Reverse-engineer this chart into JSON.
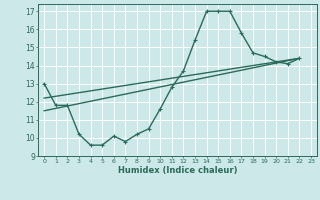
{
  "xlabel": "Humidex (Indice chaleur)",
  "xlim": [
    -0.5,
    23.5
  ],
  "ylim": [
    9,
    17.4
  ],
  "yticks": [
    9,
    10,
    11,
    12,
    13,
    14,
    15,
    16,
    17
  ],
  "xticks": [
    0,
    1,
    2,
    3,
    4,
    5,
    6,
    7,
    8,
    9,
    10,
    11,
    12,
    13,
    14,
    15,
    16,
    17,
    18,
    19,
    20,
    21,
    22,
    23
  ],
  "xtick_labels": [
    "0",
    "1",
    "2",
    "3",
    "4",
    "5",
    "6",
    "7",
    "8",
    "9",
    "10",
    "11",
    "12",
    "13",
    "14",
    "15",
    "16",
    "17",
    "18",
    "19",
    "20",
    "21",
    "22",
    "23"
  ],
  "background_color": "#cce8e8",
  "grid_color": "#ffffff",
  "line_color": "#2a6b5a",
  "line1_x": [
    0,
    1,
    2,
    3,
    4,
    5,
    6,
    7,
    8,
    9,
    10,
    11,
    12,
    13,
    14,
    15,
    16,
    17,
    18,
    19,
    20,
    21,
    22
  ],
  "line1_y": [
    13.0,
    11.8,
    11.8,
    10.2,
    9.6,
    9.6,
    10.1,
    9.8,
    10.2,
    10.5,
    11.6,
    12.8,
    13.7,
    15.4,
    17.0,
    17.0,
    17.0,
    15.8,
    14.7,
    14.5,
    14.2,
    14.1,
    14.4
  ],
  "line2_x": [
    0,
    22
  ],
  "line2_y": [
    11.5,
    14.4
  ],
  "line3_x": [
    0,
    22
  ],
  "line3_y": [
    12.2,
    14.4
  ],
  "marker_size": 2.5,
  "line_width": 1.0
}
